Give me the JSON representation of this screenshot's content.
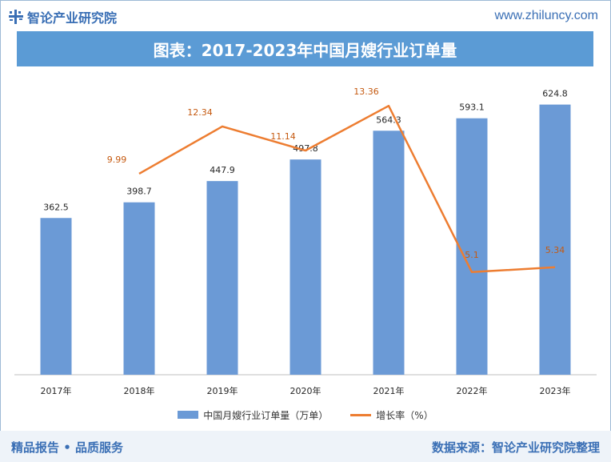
{
  "header": {
    "brand": "智论产业研究院",
    "url": "www.zhiluncy.com"
  },
  "title": "图表：2017-2023年中国月嫂行业订单量",
  "legend": {
    "bar_label": "中国月嫂行业订单量（万单）",
    "line_label": "增长率（%）"
  },
  "footer": {
    "left": "精品报告 • 品质服务",
    "right": "数据来源：智论产业研究院整理"
  },
  "colors": {
    "bar": "#6b9ad6",
    "line": "#ed7d31",
    "title_band": "#5b9bd5",
    "brand": "#3a6fb5"
  },
  "chart_data": {
    "type": "bar",
    "categories": [
      "2017年",
      "2018年",
      "2019年",
      "2020年",
      "2021年",
      "2022年",
      "2023年"
    ],
    "series": [
      {
        "name": "中国月嫂行业订单量（万单）",
        "type": "bar",
        "values": [
          362.5,
          398.7,
          447.9,
          497.8,
          564.3,
          593.1,
          624.8
        ]
      },
      {
        "name": "增长率（%）",
        "type": "line",
        "values": [
          null,
          9.99,
          12.34,
          11.14,
          13.36,
          5.1,
          5.34
        ]
      }
    ],
    "bar_labels": [
      "362.5",
      "398.7",
      "447.9",
      "497.8",
      "564.3",
      "593.1",
      "624.8"
    ],
    "line_labels": [
      "",
      "9.99",
      "12.34",
      "11.14",
      "13.36",
      "5.1",
      "5.34"
    ],
    "ylim_bar": [
      0,
      700
    ],
    "ylim_line": [
      0,
      15
    ],
    "grid": false,
    "legend_position": "bottom"
  }
}
